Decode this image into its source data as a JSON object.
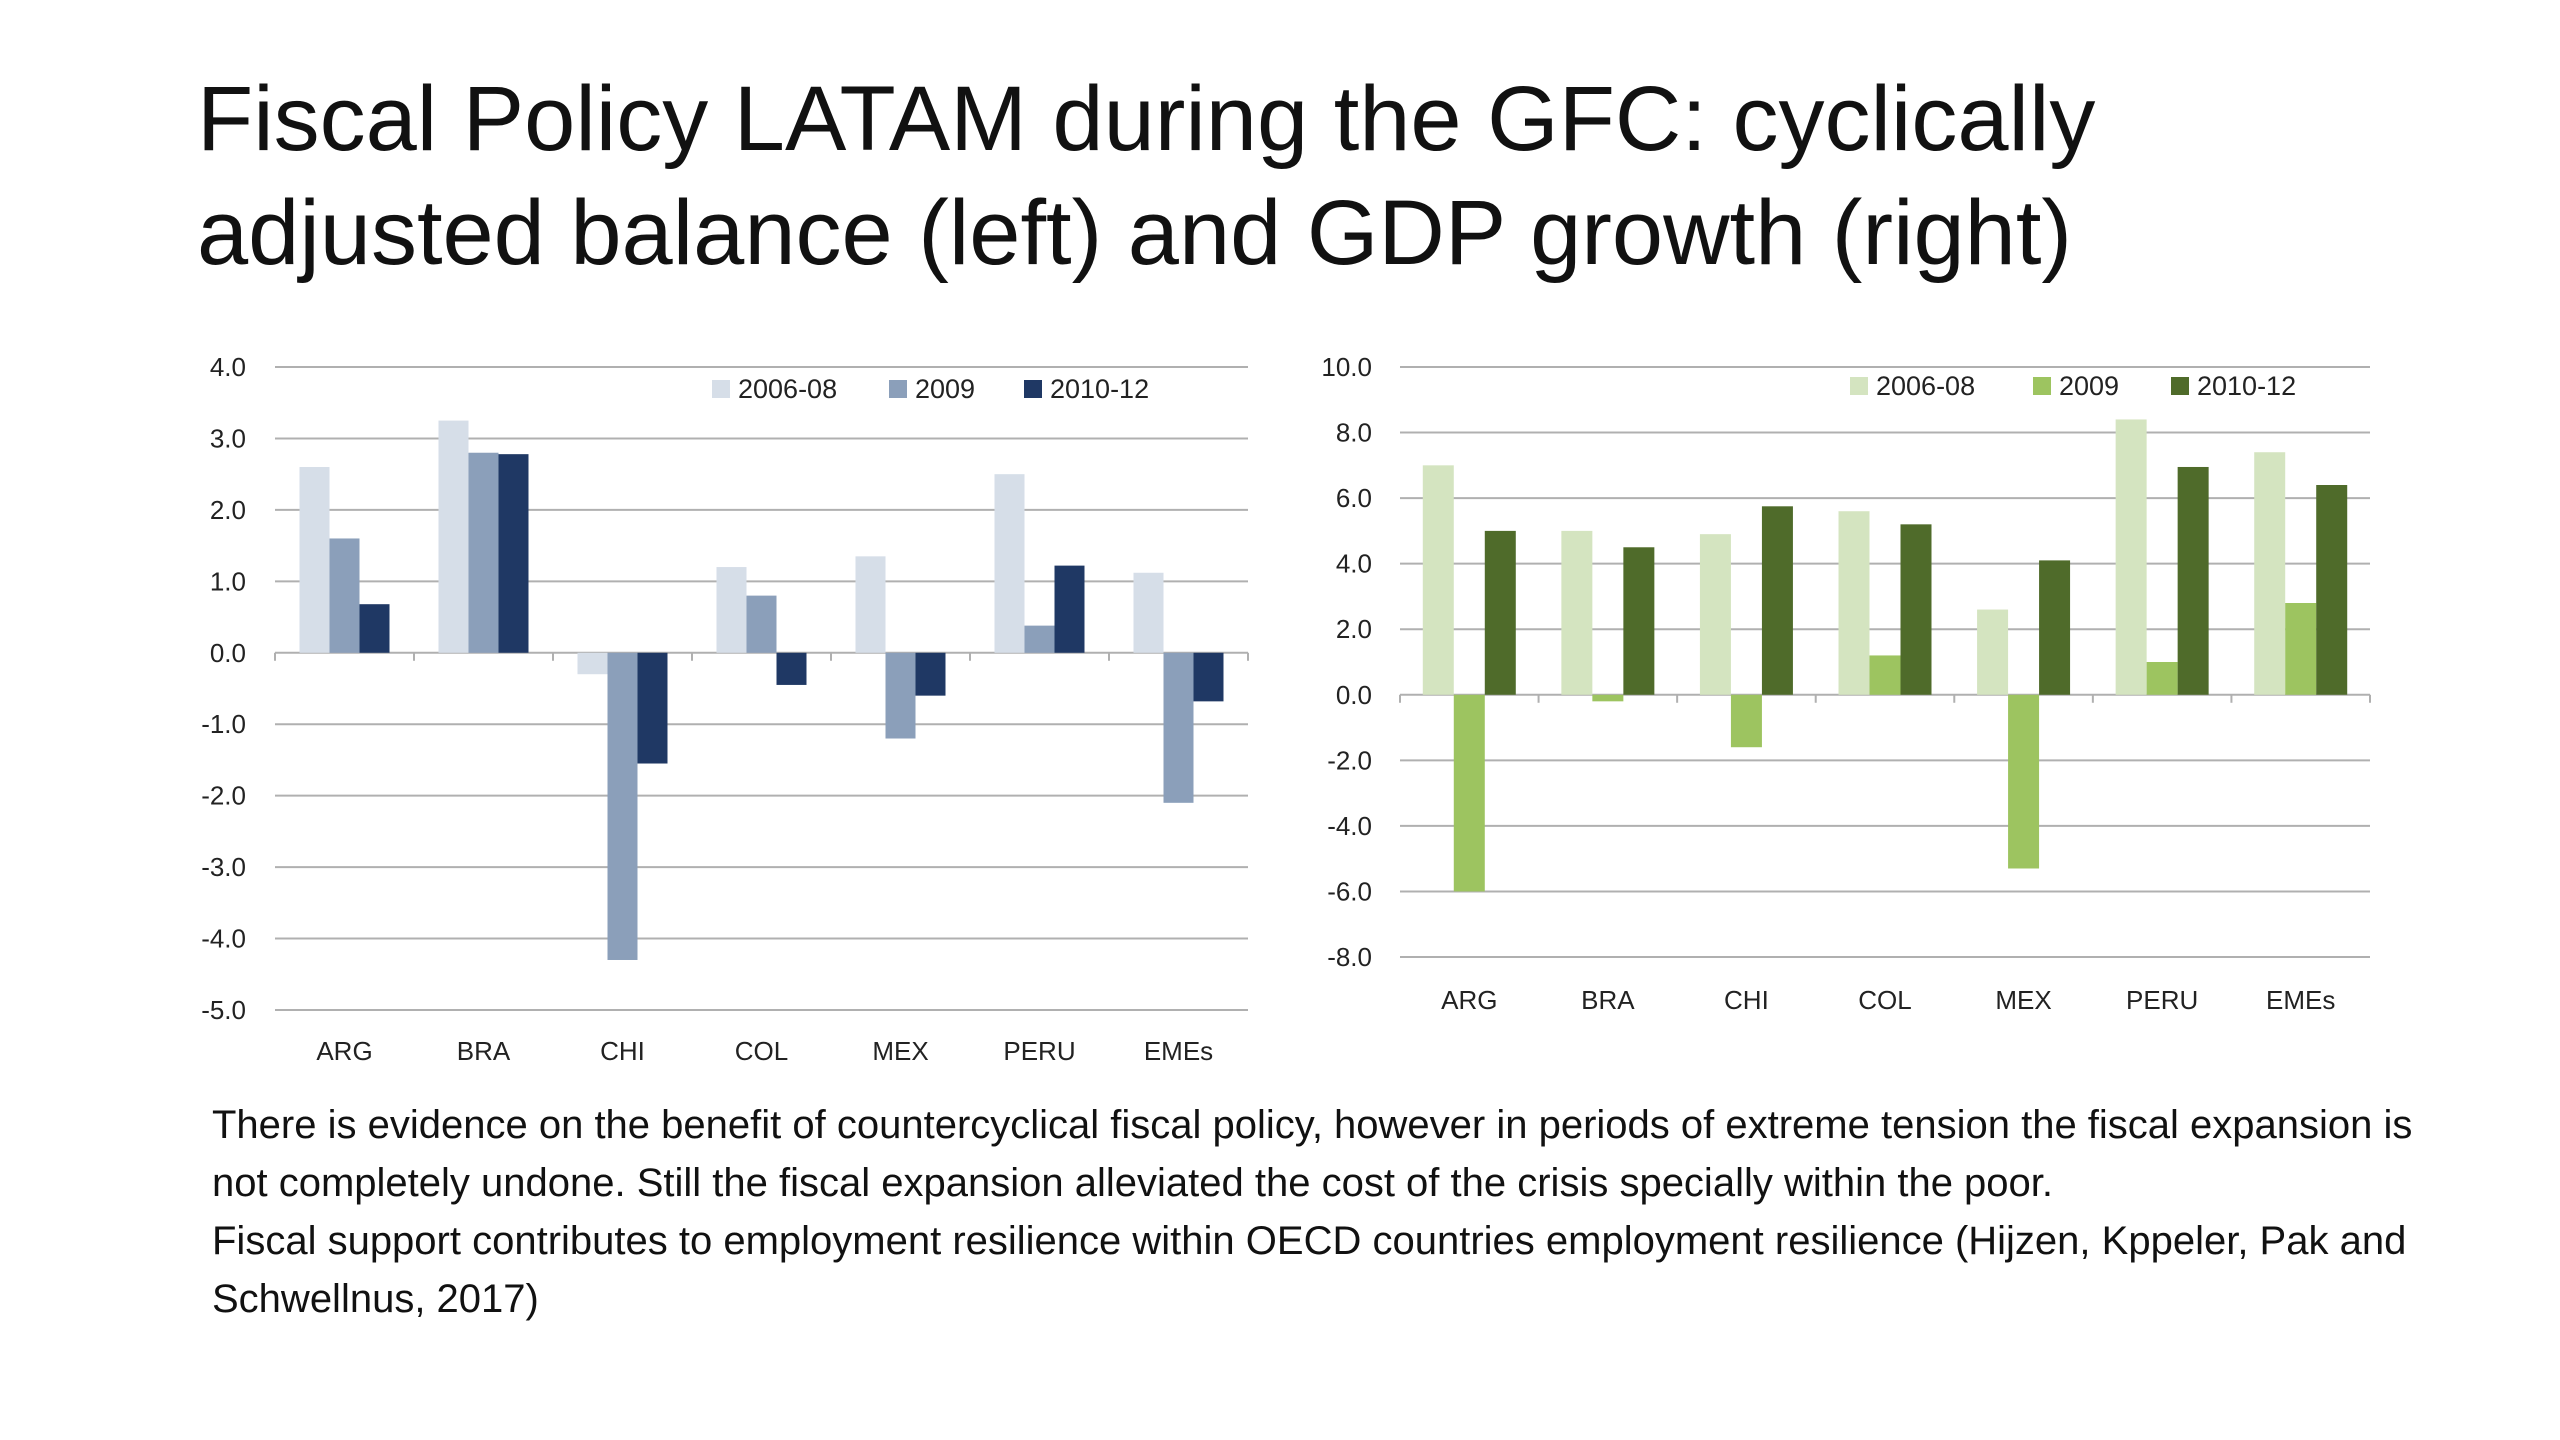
{
  "slide": {
    "title": "Fiscal Policy LATAM during the GFC: cyclically adjusted balance (left) and GDP growth (right)",
    "paragraphs": [
      "There is evidence on the benefit of countercyclical fiscal policy, however in periods of extreme tension the fiscal expansion is not completely undone. Still the fiscal expansion alleviated the cost of the crisis specially within the poor.",
      "Fiscal support contributes to employment resilience within OECD countries employment resilience (Hijzen, Kppeler, Pak and Schwellnus, 2017)"
    ]
  },
  "chart_data": [
    {
      "type": "bar",
      "title": "",
      "xlabel": "",
      "ylabel": "",
      "categories": [
        "ARG",
        "BRA",
        "CHI",
        "COL",
        "MEX",
        "PERU",
        "EMEs"
      ],
      "ylim": [
        -5.0,
        4.0
      ],
      "ticks": [
        4.0,
        3.0,
        2.0,
        1.0,
        0.0,
        -1.0,
        -2.0,
        -3.0,
        -4.0,
        -5.0
      ],
      "tick_labels": [
        "4.0",
        "3.0",
        "2.0",
        "1.0",
        "0.0",
        "-1.0",
        "-2.0",
        "-3.0",
        "-4.0",
        "-5.0"
      ],
      "grid": true,
      "legend_position": "top-right",
      "series": [
        {
          "name": "2006-08",
          "color": "#d6dee8",
          "values": [
            2.6,
            3.25,
            -0.3,
            1.2,
            1.35,
            2.5,
            1.12
          ]
        },
        {
          "name": "2009",
          "color": "#8b9fba",
          "values": [
            1.6,
            2.8,
            -4.3,
            0.8,
            -1.2,
            0.38,
            -2.1
          ]
        },
        {
          "name": "2010-12",
          "color": "#1f3864",
          "values": [
            0.68,
            2.78,
            -1.55,
            -0.45,
            -0.6,
            1.22,
            -0.68
          ]
        }
      ]
    },
    {
      "type": "bar",
      "title": "",
      "xlabel": "",
      "ylabel": "",
      "categories": [
        "ARG",
        "BRA",
        "CHI",
        "COL",
        "MEX",
        "PERU",
        "EMEs"
      ],
      "ylim": [
        -8.0,
        10.0
      ],
      "ticks": [
        10.0,
        8.0,
        6.0,
        4.0,
        2.0,
        0.0,
        -2.0,
        -4.0,
        -6.0,
        -8.0
      ],
      "tick_labels": [
        "10.0",
        "8.0",
        "6.0",
        "4.0",
        "2.0",
        "0.0",
        "-2.0",
        "-4.0",
        "-6.0",
        "-8.0"
      ],
      "grid": true,
      "legend_position": "top-right",
      "series": [
        {
          "name": "2006-08",
          "color": "#d4e4c0",
          "values": [
            7.0,
            5.0,
            4.9,
            5.6,
            2.6,
            8.4,
            7.4
          ]
        },
        {
          "name": "2009",
          "color": "#9dc460",
          "values": [
            -6.0,
            -0.2,
            -1.6,
            1.2,
            -5.3,
            1.0,
            2.8
          ]
        },
        {
          "name": "2010-12",
          "color": "#4f6b2a",
          "values": [
            5.0,
            4.5,
            5.75,
            5.2,
            4.1,
            6.95,
            6.4
          ]
        }
      ]
    }
  ]
}
